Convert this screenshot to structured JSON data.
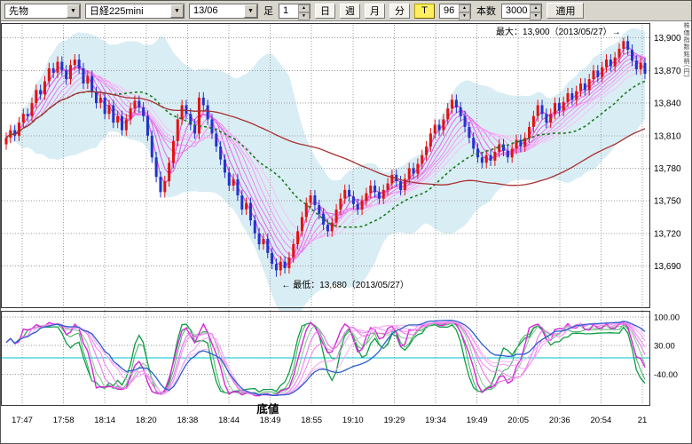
{
  "window": {
    "axis_note": "株価指数銘柄(円)"
  },
  "toolbar": {
    "category": "先物",
    "symbol": "日経225mini",
    "contract": "13/06",
    "interval_label": "足",
    "interval_value": "1",
    "periods": [
      {
        "label": "日"
      },
      {
        "label": "週"
      },
      {
        "label": "月"
      },
      {
        "label": "分"
      },
      {
        "label": "T"
      }
    ],
    "tick_count": "96",
    "bars_label": "本数",
    "bars_count": "3000",
    "apply": "適用"
  },
  "chart_data": {
    "type": "candlestick",
    "instrument": "日経225mini",
    "contract": "13/06",
    "price_axis": {
      "min": 13652,
      "max": 13912,
      "ticks": [
        {
          "v": 13900,
          "label": "13,900"
        },
        {
          "v": 13870,
          "label": "13,870"
        },
        {
          "v": 13840,
          "label": "13,840"
        },
        {
          "v": 13810,
          "label": "13,810"
        },
        {
          "v": 13780,
          "label": "13,780"
        },
        {
          "v": 13750,
          "label": "13,750"
        },
        {
          "v": 13720,
          "label": "13,720"
        },
        {
          "v": 13690,
          "label": "13,690"
        }
      ]
    },
    "time_axis": {
      "labels": [
        "17:47",
        "17:58",
        "18:14",
        "18:20",
        "18:38",
        "18:44",
        "18:49",
        "18:55",
        "19:10",
        "19:29",
        "19:34",
        "19:49",
        "20:05",
        "20:36",
        "20:54",
        "21"
      ]
    },
    "annotations": {
      "max": {
        "text": "最大：13,900（2013/05/27）→",
        "value": 13900,
        "date": "2013/05/27"
      },
      "min": {
        "text": "← 最低：13,680（2013/05/27）",
        "value": 13680,
        "date": "2013/05/27"
      },
      "bottom_label": {
        "text": "底値",
        "color": "#cc0000"
      }
    },
    "first_open": 13802,
    "wick": 5,
    "closes": [
      13808,
      13815,
      13810,
      13822,
      13830,
      13828,
      13840,
      13852,
      13848,
      13860,
      13872,
      13868,
      13878,
      13870,
      13862,
      13875,
      13880,
      13872,
      13858,
      13865,
      13850,
      13840,
      13845,
      13830,
      13838,
      13822,
      13828,
      13815,
      13825,
      13835,
      13842,
      13836,
      13828,
      13810,
      13790,
      13772,
      13758,
      13768,
      13785,
      13805,
      13825,
      13838,
      13830,
      13820,
      13812,
      13845,
      13838,
      13825,
      13812,
      13800,
      13788,
      13776,
      13764,
      13770,
      13755,
      13742,
      13748,
      13732,
      13720,
      13710,
      13715,
      13702,
      13692,
      13686,
      13694,
      13688,
      13698,
      13710,
      13722,
      13735,
      13748,
      13755,
      13746,
      13738,
      13728,
      13722,
      13730,
      13742,
      13752,
      13760,
      13754,
      13747,
      13742,
      13750,
      13757,
      13764,
      13758,
      13752,
      13760,
      13766,
      13774,
      13768,
      13760,
      13770,
      13780,
      13775,
      13784,
      13792,
      13800,
      13812,
      13820,
      13815,
      13825,
      13835,
      13843,
      13836,
      13828,
      13818,
      13808,
      13798,
      13790,
      13785,
      13792,
      13787,
      13795,
      13802,
      13796,
      13790,
      13798,
      13806,
      13800,
      13808,
      13818,
      13828,
      13838,
      13830,
      13822,
      13830,
      13840,
      13833,
      13841,
      13849,
      13843,
      13851,
      13858,
      13852,
      13862,
      13870,
      13864,
      13873,
      13880,
      13874,
      13882,
      13890,
      13897,
      13889,
      13879,
      13871,
      13877,
      13867
    ],
    "overrides": [
      {
        "i": 16,
        "high": 13885
      },
      {
        "i": 45,
        "high": 13850
      },
      {
        "i": 63,
        "low": 13680
      },
      {
        "i": 144,
        "high": 13900
      }
    ],
    "colors": {
      "up": "#e21212",
      "down": "#2233cc",
      "band": "#d9edf4",
      "grid": "#9a9a9a",
      "green_ma": "#1a7a1a",
      "red_ma": "#a83030",
      "cyan_line": "#00c0d0",
      "border": "#333333"
    },
    "ribbon": {
      "periods": [
        3,
        5,
        7,
        9,
        11,
        13,
        15,
        18
      ],
      "colors": [
        "#e040e0",
        "#e452e4",
        "#e964e9",
        "#ed76ed",
        "#f088f0",
        "#f39af3",
        "#f6adf6",
        "#f9c0f9"
      ]
    },
    "green_ma_period": 26,
    "red_ma_period": 70,
    "band_period": 22,
    "band_mult": 2.3,
    "oscillator": {
      "range": [
        -115,
        115
      ],
      "zero_line_v": 0,
      "ticks": [
        {
          "v": 100,
          "label": "100.00"
        },
        {
          "v": 30,
          "label": "30.00"
        },
        {
          "v": -40,
          "label": "-40.00"
        }
      ],
      "series": [
        {
          "period": 6,
          "smooth": 3,
          "color": "#0f9b46",
          "width": 1.3
        },
        {
          "period": 9,
          "smooth": 3,
          "color": "#3cb060",
          "width": 1
        },
        {
          "period": 12,
          "smooth": 4,
          "color": "#7fcb8f",
          "width": 1
        },
        {
          "period": 13,
          "smooth": 2,
          "color": "#d926d9",
          "width": 1.4
        },
        {
          "period": 16,
          "smooth": 4,
          "color": "#ee6dee",
          "width": 1
        },
        {
          "period": 20,
          "smooth": 4,
          "color": "#f083f0",
          "width": 1
        },
        {
          "period": 24,
          "smooth": 5,
          "color": "#f49af4",
          "width": 1
        },
        {
          "period": 28,
          "smooth": 5,
          "color": "#f7b0f7",
          "width": 1
        },
        {
          "period": 36,
          "smooth": 6,
          "color": "#2a5fd0",
          "width": 1.3
        }
      ]
    }
  }
}
